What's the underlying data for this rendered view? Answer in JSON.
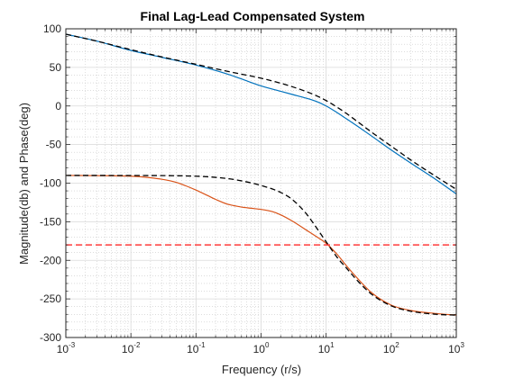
{
  "chart_data": {
    "type": "line",
    "title": "Final Lag-Lead Compensated System",
    "xlabel": "Frequency (r/s)",
    "ylabel": "Magnitude(db) and Phase(deg)",
    "xscale": "log",
    "xlim": [
      0.001,
      1000
    ],
    "ylim": [
      -300,
      100
    ],
    "grid": true,
    "minor_grid": true,
    "x_ticks": [
      {
        "value": 0.001,
        "base": "10",
        "exp": "-3"
      },
      {
        "value": 0.01,
        "base": "10",
        "exp": "-2"
      },
      {
        "value": 0.1,
        "base": "10",
        "exp": "-1"
      },
      {
        "value": 1,
        "base": "10",
        "exp": "0"
      },
      {
        "value": 10,
        "base": "10",
        "exp": "1"
      },
      {
        "value": 100,
        "base": "10",
        "exp": "2"
      },
      {
        "value": 1000,
        "base": "10",
        "exp": "3"
      }
    ],
    "y_ticks": [
      100,
      50,
      0,
      -50,
      -100,
      -150,
      -200,
      -250,
      -300
    ],
    "series": [
      {
        "color": "#0072bd",
        "style": "solid",
        "x": [
          0.001,
          0.003,
          0.01,
          0.03,
          0.1,
          0.2,
          0.3,
          0.5,
          1,
          2,
          3,
          5,
          7,
          10,
          15,
          20,
          30,
          50,
          100,
          200,
          500,
          1000
        ],
        "y": [
          93,
          84,
          72,
          63,
          53,
          46,
          41.5,
          35,
          26,
          19,
          15,
          10,
          6,
          0,
          -9,
          -16,
          -26,
          -39,
          -57,
          -74,
          -96,
          -114
        ]
      },
      {
        "color": "#000000",
        "style": "dashed",
        "x": [
          0.001,
          0.003,
          0.01,
          0.03,
          0.1,
          0.3,
          1,
          2,
          3,
          5,
          7,
          10,
          15,
          20,
          30,
          50,
          100,
          200,
          500,
          1000
        ],
        "y": [
          93,
          84,
          73,
          63.5,
          54,
          45,
          36,
          29.5,
          25,
          18.5,
          13.5,
          7,
          -2,
          -9,
          -20,
          -34,
          -52,
          -70,
          -92,
          -108
        ]
      },
      {
        "color": "#d95319",
        "style": "solid",
        "x": [
          0.001,
          0.003,
          0.01,
          0.02,
          0.03,
          0.05,
          0.07,
          0.1,
          0.15,
          0.2,
          0.3,
          0.5,
          0.7,
          1,
          1.5,
          2,
          3,
          5,
          7,
          10,
          15,
          20,
          30,
          50,
          100,
          200,
          500,
          1000
        ],
        "y": [
          -90,
          -90.3,
          -91,
          -93,
          -95,
          -99,
          -103.5,
          -109,
          -116,
          -121,
          -127,
          -131,
          -132.5,
          -134,
          -137,
          -141,
          -149,
          -161,
          -169,
          -178,
          -193,
          -206,
          -223,
          -242,
          -258,
          -265,
          -269,
          -271
        ]
      },
      {
        "color": "#000000",
        "style": "dashed",
        "x": [
          0.001,
          0.01,
          0.1,
          0.3,
          0.5,
          1,
          2,
          3,
          5,
          7,
          10,
          15,
          20,
          30,
          50,
          100,
          200,
          500,
          1000
        ],
        "y": [
          -90,
          -90.1,
          -91,
          -94,
          -97,
          -103,
          -112,
          -121,
          -140,
          -157,
          -176,
          -197,
          -209,
          -226,
          -244,
          -259,
          -266,
          -270,
          -271
        ]
      },
      {
        "color": "#ff3b3b",
        "style": "dashed",
        "x": [
          0.001,
          1000
        ],
        "y": [
          -180,
          -180
        ]
      }
    ]
  }
}
